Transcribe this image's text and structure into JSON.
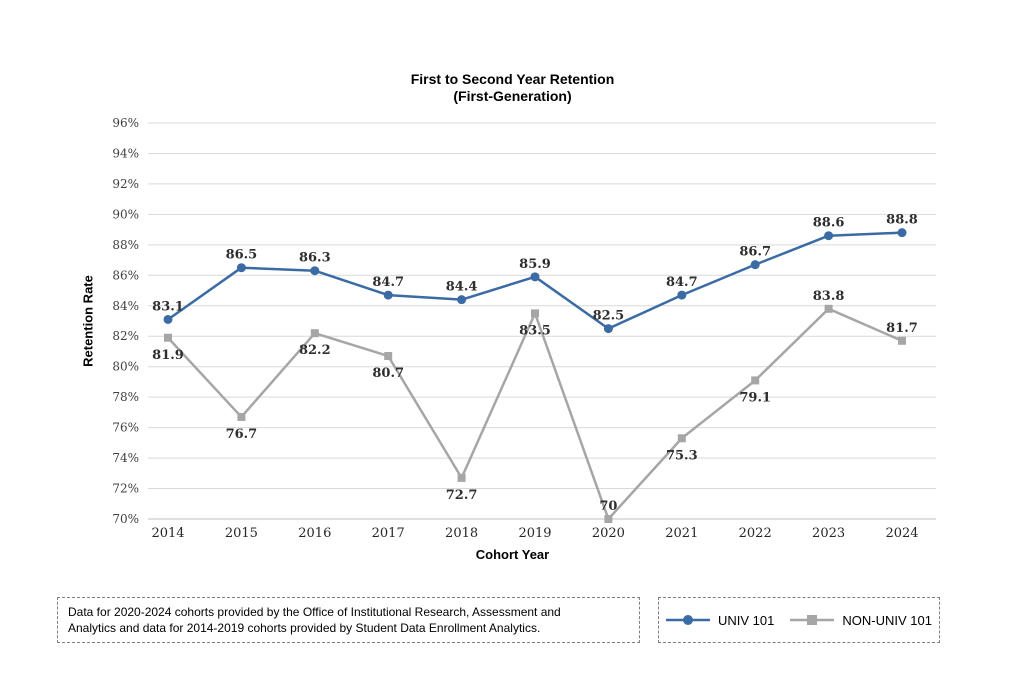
{
  "chart": {
    "title_line1": "First to Second Year Retention",
    "title_line2": "(First-Generation)",
    "y_axis_title": "Retention Rate",
    "x_axis_title": "Cohort Year"
  },
  "chart_data": {
    "type": "line",
    "title": "First to Second Year Retention (First-Generation)",
    "xlabel": "Cohort Year",
    "ylabel": "Retention Rate",
    "ylim": [
      70,
      96
    ],
    "y_tick_step": 2,
    "y_tick_labels": [
      "70%",
      "72%",
      "74%",
      "76%",
      "78%",
      "80%",
      "82%",
      "84%",
      "86%",
      "88%",
      "90%",
      "92%",
      "94%",
      "96%"
    ],
    "grid": true,
    "legend_position": "bottom-right",
    "categories": [
      "2014",
      "2015",
      "2016",
      "2017",
      "2018",
      "2019",
      "2020",
      "2021",
      "2022",
      "2023",
      "2024"
    ],
    "series": [
      {
        "name": "UNIV 101",
        "color": "#3A6BA5",
        "marker": "circle",
        "values": [
          83.1,
          86.5,
          86.3,
          84.7,
          84.4,
          85.9,
          82.5,
          84.7,
          86.7,
          88.6,
          88.8
        ],
        "label_sides": [
          "above",
          "above",
          "above",
          "above",
          "above",
          "above",
          "above",
          "above",
          "above",
          "above",
          "above"
        ]
      },
      {
        "name": "NON-UNIV 101",
        "color": "#A6A6A6",
        "marker": "square",
        "values": [
          81.9,
          76.7,
          82.2,
          80.7,
          72.7,
          83.5,
          70,
          75.3,
          79.1,
          83.8,
          81.7
        ],
        "label_sides": [
          "below",
          "below",
          "below",
          "below",
          "below",
          "below",
          "above",
          "below",
          "below",
          "above",
          "above"
        ]
      }
    ]
  },
  "legend": {
    "items": [
      {
        "label": "UNIV 101",
        "color": "#3A6BA5",
        "marker": "circle"
      },
      {
        "label": "NON-UNIV 101",
        "color": "#A6A6A6",
        "marker": "square"
      }
    ]
  },
  "footnote": {
    "line1": "Data for 2020-2024 cohorts provided by the Office of Institutional Research, Assessment and",
    "line2": "Analytics and data for 2014-2019 cohorts provided by Student Data Enrollment Analytics."
  },
  "colors": {
    "univ_101": "#3A6BA5",
    "non_univ_101": "#A6A6A6",
    "gridline": "#D9D9D9",
    "axis_line": "#BFBFBF",
    "dashed_border": "#808080"
  }
}
